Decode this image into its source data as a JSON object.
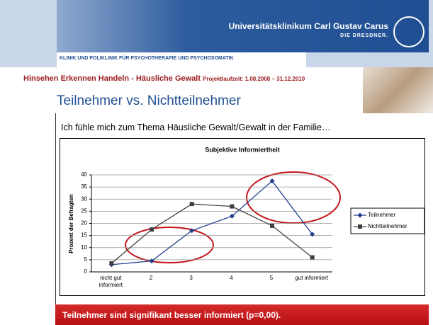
{
  "header": {
    "institution": "Universitätsklinikum Carl Gustav Carus",
    "tagline": "DIE DRESDNER.",
    "clinic": "KLINIK UND POLIKLINIK FÜR PSYCHOTHERAPIE UND PSYCHOSOMATIK",
    "project": "Hinsehen Erkennen Handeln - Häusliche Gewalt",
    "duration": "Projektlaufzeit: 1.08.2008 – 31.12.2010"
  },
  "slide": {
    "title": "Teilnehmer vs. Nichtteilnehmer",
    "question": "Ich fühle mich zum Thema Häusliche Gewalt/Gewalt in der Familie…",
    "conclusion": "Teilnehmer sind signifikant besser informiert (p=0,00)."
  },
  "chart_data": {
    "type": "line",
    "title": "Subjektive Informiertheit",
    "y_label": "Prozent der Befragten",
    "categories": [
      "nicht gut informiert",
      "2",
      "3",
      "4",
      "5",
      "gut informiert"
    ],
    "series": [
      {
        "name": "Teilnehmer",
        "color": "#1f3d8a",
        "marker": "diamond",
        "values": [
          3,
          4.5,
          17,
          23,
          37.5,
          15.5
        ]
      },
      {
        "name": "Nichtteilnehmer",
        "color": "#404040",
        "marker": "square",
        "values": [
          3.5,
          17.5,
          28,
          27,
          19,
          6
        ]
      }
    ],
    "ylim": [
      0,
      40
    ],
    "yticks": [
      0,
      5,
      10,
      15,
      20,
      25,
      30,
      35,
      40
    ],
    "grid": true,
    "legend": "right"
  }
}
